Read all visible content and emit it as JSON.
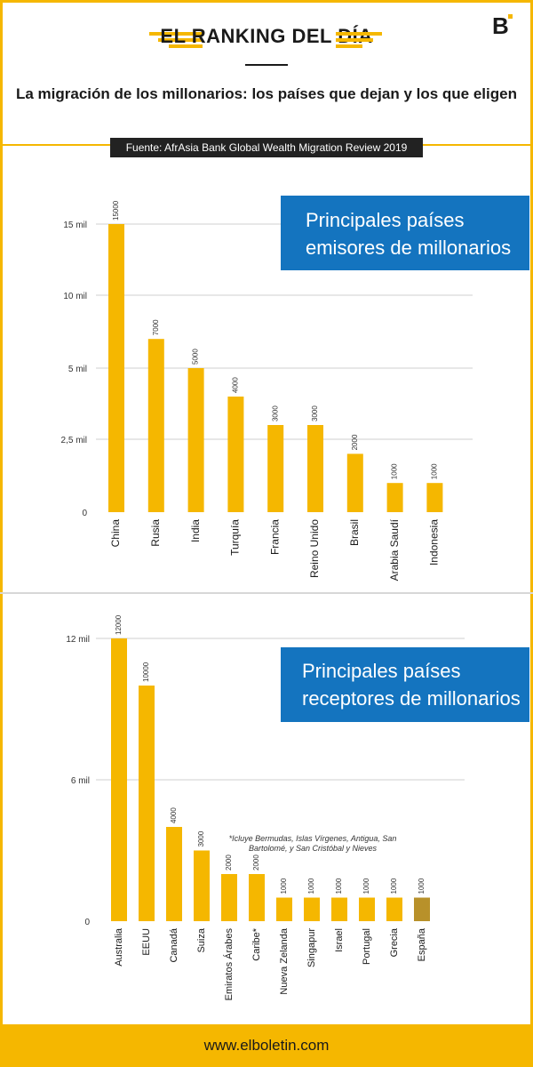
{
  "header": {
    "title": "EL RANKING DEL DÍA",
    "subtitle": "La migración de los millonarios: los países que dejan y los que eligen",
    "source": "Fuente: AfrAsia Bank Global Wealth Migration Review 2019"
  },
  "footer": {
    "url": "www.elboletin.com"
  },
  "colors": {
    "accent": "#f5b700",
    "highlight": "#b8912a",
    "callout": "#1474bf"
  },
  "chart_data": [
    {
      "type": "bar",
      "callout": [
        "Principales países",
        "emisores de millonarios"
      ],
      "categories": [
        "China",
        "Rusia",
        "India",
        "Turquía",
        "Francia",
        "Reino Unido",
        "Brasil",
        "Arabia Saudí",
        "Indonesia"
      ],
      "values": [
        15000,
        7000,
        5000,
        4000,
        3000,
        3000,
        2000,
        1000,
        1000
      ],
      "yticks": [
        {
          "value": 0,
          "label": "0"
        },
        {
          "value": 2500,
          "label": "2,5 mil"
        },
        {
          "value": 5000,
          "label": "5 mil"
        },
        {
          "value": 10000,
          "label": "10 mil"
        },
        {
          "value": 15000,
          "label": "15 mil"
        }
      ],
      "grid": true
    },
    {
      "type": "bar",
      "callout": [
        "Principales países",
        "receptores de millonarios"
      ],
      "categories": [
        "Australia",
        "EEUU",
        "Canadá",
        "Suiza",
        "Emiratos Árabes",
        "Caribe*",
        "Nueva Zelanda",
        "Singapur",
        "Israel",
        "Portugal",
        "Grecia",
        "España"
      ],
      "values": [
        12000,
        10000,
        4000,
        3000,
        2000,
        2000,
        1000,
        1000,
        1000,
        1000,
        1000,
        1000
      ],
      "highlight_category": "España",
      "yticks": [
        {
          "value": 0,
          "label": "0"
        },
        {
          "value": 6000,
          "label": "6 mil"
        },
        {
          "value": 12000,
          "label": "12 mil"
        }
      ],
      "grid": true,
      "footnote": "*Icluye Bermudas, Islas Vírgenes, Antigua, San Bartolomé, y San Cristóbal y Nieves"
    }
  ]
}
